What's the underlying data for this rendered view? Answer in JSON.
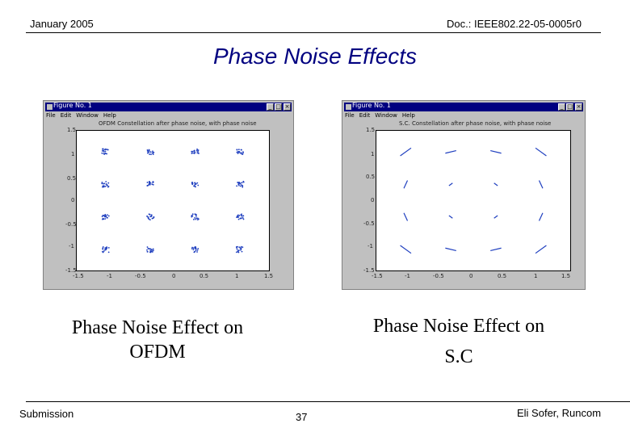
{
  "header": {
    "date": "January 2005",
    "doc": "Doc.: IEEE802.22-05-0005r0"
  },
  "title": "Phase Noise Effects",
  "figures": [
    {
      "window_title": "Figure No. 1",
      "menu": [
        "File",
        "Edit",
        "Window",
        "Help"
      ],
      "plot_title": "OFDM Constellation after phase noise, with phase noise",
      "yticks": [
        "1.5",
        "1",
        "0.5",
        "0",
        "-0.5",
        "-1",
        "-1.5"
      ],
      "xticks": [
        "-1.5",
        "-1",
        "-0.5",
        "0",
        "0.5",
        "1",
        "1.5"
      ],
      "constellation": "16-QAM, phase noise spreading",
      "caption_line1": "Phase Noise Effect on",
      "caption_line2": "OFDM"
    },
    {
      "window_title": "Figure No. 1",
      "menu": [
        "File",
        "Edit",
        "Window",
        "Help"
      ],
      "plot_title": "S.C. Constellation after phase noise, with phase noise",
      "yticks": [
        "1.5",
        "1",
        "0.5",
        "0",
        "-0.5",
        "-1",
        "-1.5"
      ],
      "xticks": [
        "-1.5",
        "-1",
        "-0.5",
        "0",
        "0.5",
        "1",
        "1.5"
      ],
      "constellation": "16-QAM, rotational arcs",
      "caption_line1": "Phase Noise Effect on",
      "caption_line2": "S.C"
    }
  ],
  "footer": {
    "left": "Submission",
    "page": "37",
    "right": "Eli Sofer, Runcom"
  },
  "colors": {
    "title": "#000080",
    "points": "#1f3fbf",
    "window_titlebar": "#000080"
  }
}
